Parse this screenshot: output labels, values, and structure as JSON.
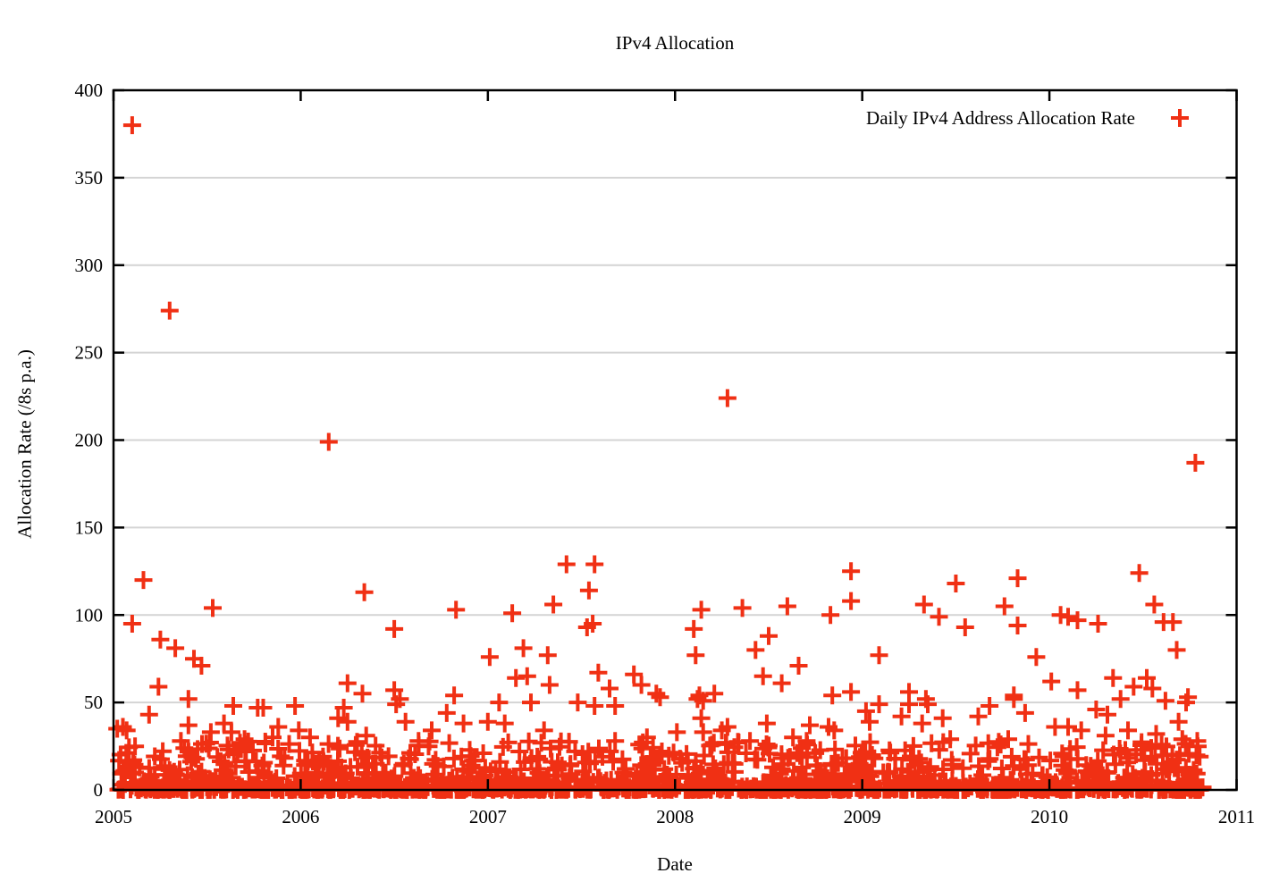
{
  "chart_data": {
    "type": "scatter",
    "title": "IPv4 Allocation",
    "xlabel": "Date",
    "ylabel": "Allocation Rate (/8s p.a.)",
    "xlim": [
      2005,
      2011
    ],
    "ylim": [
      0,
      400
    ],
    "xticks": [
      2005,
      2006,
      2007,
      2008,
      2009,
      2010,
      2011
    ],
    "yticks": [
      0,
      50,
      100,
      150,
      200,
      250,
      300,
      350,
      400
    ],
    "grid": "horizontal-gridlines-on",
    "grid_color": "#d4d4d4",
    "axis_color": "#000000",
    "background_color": "#ffffff",
    "legend_position": "top-right-inside",
    "series": [
      {
        "name": "Daily IPv4 Address Allocation Rate",
        "marker": "plus",
        "color": "#f03014",
        "points": [
          [
            2005.1,
            380
          ],
          [
            2005.3,
            274
          ],
          [
            2005.16,
            120
          ],
          [
            2005.1,
            95
          ],
          [
            2005.25,
            86
          ],
          [
            2005.33,
            81
          ],
          [
            2005.43,
            75
          ],
          [
            2005.47,
            71
          ],
          [
            2005.53,
            104
          ],
          [
            2005.24,
            59
          ],
          [
            2005.4,
            52
          ],
          [
            2005.64,
            48
          ],
          [
            2005.77,
            47
          ],
          [
            2005.8,
            47
          ],
          [
            2005.97,
            48
          ],
          [
            2005.19,
            43
          ],
          [
            2005.05,
            36
          ],
          [
            2005.4,
            37
          ],
          [
            2005.59,
            38
          ],
          [
            2005.63,
            33
          ],
          [
            2005.88,
            36
          ],
          [
            2005.99,
            34
          ],
          [
            2005.07,
            34
          ],
          [
            2005.02,
            35
          ],
          [
            2005.36,
            28
          ],
          [
            2005.52,
            33
          ],
          [
            2005.7,
            29
          ],
          [
            2005.85,
            30
          ],
          [
            2006.15,
            199
          ],
          [
            2006.34,
            113
          ],
          [
            2006.5,
            92
          ],
          [
            2006.83,
            103
          ],
          [
            2006.25,
            61
          ],
          [
            2006.33,
            55
          ],
          [
            2006.5,
            57
          ],
          [
            2006.53,
            52
          ],
          [
            2006.51,
            49
          ],
          [
            2006.82,
            54
          ],
          [
            2006.23,
            47
          ],
          [
            2006.78,
            44
          ],
          [
            2006.2,
            41
          ],
          [
            2006.25,
            39
          ],
          [
            2006.56,
            39
          ],
          [
            2006.87,
            38
          ],
          [
            2006.7,
            34
          ],
          [
            2006.35,
            31
          ],
          [
            2006.05,
            30
          ],
          [
            2006.63,
            28
          ],
          [
            2007.13,
            101
          ],
          [
            2007.19,
            81
          ],
          [
            2007.01,
            76
          ],
          [
            2007.21,
            65
          ],
          [
            2007.15,
            64
          ],
          [
            2007.06,
            50
          ],
          [
            2007.23,
            50
          ],
          [
            2007.0,
            39
          ],
          [
            2007.09,
            38
          ],
          [
            2007.42,
            129
          ],
          [
            2007.57,
            129
          ],
          [
            2007.54,
            114
          ],
          [
            2007.35,
            106
          ],
          [
            2007.53,
            93
          ],
          [
            2007.56,
            95
          ],
          [
            2007.32,
            77
          ],
          [
            2007.59,
            67
          ],
          [
            2007.33,
            60
          ],
          [
            2007.78,
            66
          ],
          [
            2007.82,
            60
          ],
          [
            2007.65,
            58
          ],
          [
            2007.9,
            55
          ],
          [
            2007.92,
            53
          ],
          [
            2007.48,
            50
          ],
          [
            2007.57,
            48
          ],
          [
            2007.68,
            48
          ],
          [
            2007.68,
            28
          ],
          [
            2007.3,
            34
          ],
          [
            2007.85,
            30
          ],
          [
            2008.28,
            224
          ],
          [
            2008.36,
            104
          ],
          [
            2008.14,
            103
          ],
          [
            2008.1,
            92
          ],
          [
            2008.43,
            80
          ],
          [
            2008.11,
            77
          ],
          [
            2008.13,
            54
          ],
          [
            2008.15,
            51
          ],
          [
            2008.12,
            52
          ],
          [
            2008.21,
            55
          ],
          [
            2008.14,
            41
          ],
          [
            2008.15,
            33
          ],
          [
            2008.25,
            34
          ],
          [
            2008.28,
            36
          ],
          [
            2008.01,
            33
          ],
          [
            2008.5,
            88
          ],
          [
            2008.6,
            105
          ],
          [
            2008.66,
            71
          ],
          [
            2008.47,
            65
          ],
          [
            2008.57,
            61
          ],
          [
            2008.83,
            100
          ],
          [
            2008.84,
            54
          ],
          [
            2008.94,
            125
          ],
          [
            2008.94,
            108
          ],
          [
            2008.94,
            56
          ],
          [
            2008.49,
            38
          ],
          [
            2008.72,
            37
          ],
          [
            2008.82,
            36
          ],
          [
            2008.85,
            34
          ],
          [
            2008.63,
            30
          ],
          [
            2009.33,
            106
          ],
          [
            2009.41,
            99
          ],
          [
            2009.5,
            118
          ],
          [
            2009.55,
            93
          ],
          [
            2009.09,
            77
          ],
          [
            2009.09,
            49
          ],
          [
            2009.25,
            56
          ],
          [
            2009.25,
            49
          ],
          [
            2009.34,
            52
          ],
          [
            2009.35,
            49
          ],
          [
            2009.02,
            45
          ],
          [
            2009.04,
            39
          ],
          [
            2009.21,
            42
          ],
          [
            2009.32,
            38
          ],
          [
            2009.43,
            41
          ],
          [
            2009.47,
            29
          ],
          [
            2009.62,
            42
          ],
          [
            2009.68,
            48
          ],
          [
            2009.76,
            105
          ],
          [
            2009.83,
            121
          ],
          [
            2009.83,
            94
          ],
          [
            2009.81,
            54
          ],
          [
            2009.81,
            52
          ],
          [
            2009.87,
            44
          ],
          [
            2009.74,
            26
          ],
          [
            2009.78,
            29
          ],
          [
            2009.93,
            76
          ],
          [
            2010.78,
            187
          ],
          [
            2010.48,
            124
          ],
          [
            2010.56,
            106
          ],
          [
            2010.06,
            100
          ],
          [
            2010.15,
            97
          ],
          [
            2010.1,
            99
          ],
          [
            2010.26,
            95
          ],
          [
            2010.61,
            96
          ],
          [
            2010.66,
            96
          ],
          [
            2010.68,
            80
          ],
          [
            2010.01,
            62
          ],
          [
            2010.34,
            64
          ],
          [
            2010.52,
            64
          ],
          [
            2010.45,
            59
          ],
          [
            2010.55,
            58
          ],
          [
            2010.15,
            57
          ],
          [
            2010.38,
            52
          ],
          [
            2010.62,
            51
          ],
          [
            2010.74,
            53
          ],
          [
            2010.73,
            50
          ],
          [
            2010.25,
            46
          ],
          [
            2010.31,
            43
          ],
          [
            2010.03,
            36
          ],
          [
            2010.1,
            36
          ],
          [
            2010.17,
            34
          ],
          [
            2010.3,
            31
          ],
          [
            2010.42,
            34
          ],
          [
            2010.57,
            32
          ],
          [
            2010.69,
            39
          ],
          [
            2010.71,
            29
          ],
          [
            2010.79,
            28
          ]
        ],
        "dense_band": {
          "description": "unresolvable dense cloud of daily points hugging the x-axis",
          "x_range": [
            2005.02,
            2010.82
          ],
          "value_range": [
            0,
            28
          ],
          "count": 1250,
          "skew_exponent": 3,
          "baseline_extra_count": 320,
          "baseline_value_range": [
            0,
            2
          ],
          "seed": 42
        }
      }
    ]
  }
}
